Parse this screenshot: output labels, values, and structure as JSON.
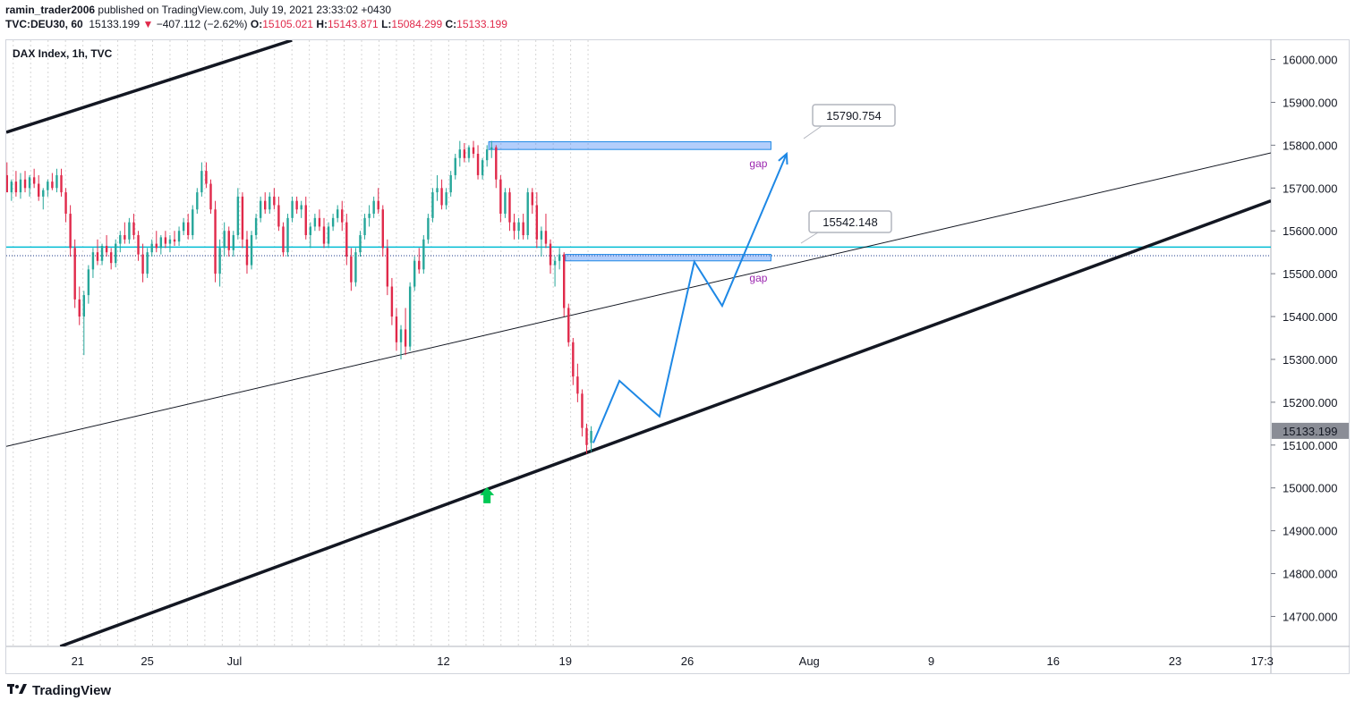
{
  "header": {
    "publisher": "ramin_trader2006",
    "published_text": " published on TradingView.com, July 19, 2021 23:33:02 +0430",
    "symbol": "TVC:DEU30, 60",
    "last": "15133.199",
    "change": "−407.112 (−2.62%)",
    "o_label": "O:",
    "o_value": "15105.021",
    "h_label": "H:",
    "h_value": "15143.871",
    "l_label": "L:",
    "l_value": "15084.299",
    "c_label": "C:",
    "c_value": "15133.199"
  },
  "footer": {
    "brand": "TradingView",
    "logo_icon": "tradingview-logo-icon"
  },
  "chart_data": {
    "type": "candlestick",
    "title": "DAX Index, 1h, TVC",
    "y_ticks": [
      14700,
      14800,
      14900,
      15000,
      15100,
      15200,
      15300,
      15400,
      15500,
      15600,
      15700,
      15800,
      15900,
      16000
    ],
    "y_tick_labels": [
      "14700.000",
      "14800.000",
      "14900.000",
      "15000.000",
      "15100.000",
      "15200.000",
      "15300.000",
      "15400.000",
      "15500.000",
      "15600.000",
      "15700.000",
      "15800.000",
      "15900.000",
      "16000.000"
    ],
    "ylim": [
      14630,
      16045
    ],
    "x_ticks": [
      {
        "day": 21,
        "label": "21"
      },
      {
        "day": 25,
        "label": "25"
      },
      {
        "day": 30,
        "label": "Jul"
      },
      {
        "day": 42,
        "label": "12"
      },
      {
        "day": 49,
        "label": "19"
      },
      {
        "day": 56,
        "label": "26"
      },
      {
        "day": 63,
        "label": "Aug"
      },
      {
        "day": 70,
        "label": "9"
      },
      {
        "day": 77,
        "label": "16"
      },
      {
        "day": 84,
        "label": "23"
      },
      {
        "day": 89,
        "label": "17:3"
      }
    ],
    "xlim": [
      16.9,
      89.5
    ],
    "last_price": {
      "value": 15133.199,
      "label": "15133.199"
    },
    "horizontal_line": {
      "value": 15562,
      "color": "#00bcd4"
    },
    "dotted_line": {
      "value": 15542.148
    },
    "callouts": [
      {
        "label": "15790.754",
        "value": 15790.754
      },
      {
        "label": "15542.148",
        "value": 15542.148
      }
    ],
    "gap_zones": [
      {
        "label": "gap",
        "day_start": 44.6,
        "day_end": 60.8,
        "low": 15790,
        "high": 15808
      },
      {
        "label": "gap",
        "day_start": 49.0,
        "day_end": 60.8,
        "low": 15530,
        "high": 15545
      }
    ],
    "trendlines": [
      {
        "name": "upper-channel",
        "points": [
          [
            16.9,
            15830
          ],
          [
            33.3,
            16045
          ]
        ],
        "width": 3.5,
        "color": "#131722"
      },
      {
        "name": "lower-channel",
        "points": [
          [
            20.0,
            14630
          ],
          [
            89.5,
            15670
          ]
        ],
        "width": 3.5,
        "color": "#131722"
      },
      {
        "name": "mid-trend",
        "points": [
          [
            16.9,
            15097
          ],
          [
            89.5,
            15782
          ]
        ],
        "width": 1,
        "color": "#131722"
      }
    ],
    "projection_path": {
      "color": "#1e88e5",
      "points": [
        [
          50.6,
          15105
        ],
        [
          52.1,
          15250
        ],
        [
          54.4,
          15167
        ],
        [
          56.4,
          15528
        ],
        [
          58.0,
          15425
        ],
        [
          61.7,
          15780
        ]
      ]
    },
    "arrow_marker": {
      "day": 44.5,
      "value": 14985,
      "color": "#00c853"
    },
    "candles": [
      {
        "d": 16.94,
        "o": 15730,
        "h": 15760,
        "l": 15700,
        "c": 15690
      },
      {
        "d": 17.2,
        "o": 15690,
        "h": 15720,
        "l": 15670,
        "c": 15715
      },
      {
        "d": 17.46,
        "o": 15715,
        "h": 15740,
        "l": 15680,
        "c": 15690
      },
      {
        "d": 17.72,
        "o": 15690,
        "h": 15735,
        "l": 15675,
        "c": 15720
      },
      {
        "d": 17.98,
        "o": 15720,
        "h": 15740,
        "l": 15690,
        "c": 15700
      },
      {
        "d": 18.24,
        "o": 15700,
        "h": 15730,
        "l": 15680,
        "c": 15725
      },
      {
        "d": 18.5,
        "o": 15725,
        "h": 15745,
        "l": 15700,
        "c": 15710
      },
      {
        "d": 18.76,
        "o": 15710,
        "h": 15730,
        "l": 15670,
        "c": 15680
      },
      {
        "d": 19.02,
        "o": 15680,
        "h": 15700,
        "l": 15650,
        "c": 15695
      },
      {
        "d": 19.28,
        "o": 15695,
        "h": 15720,
        "l": 15680,
        "c": 15715
      },
      {
        "d": 19.54,
        "o": 15715,
        "h": 15735,
        "l": 15695,
        "c": 15700
      },
      {
        "d": 19.8,
        "o": 15700,
        "h": 15745,
        "l": 15690,
        "c": 15730
      },
      {
        "d": 20.06,
        "o": 15730,
        "h": 15745,
        "l": 15680,
        "c": 15690
      },
      {
        "d": 20.32,
        "o": 15690,
        "h": 15700,
        "l": 15620,
        "c": 15640
      },
      {
        "d": 20.58,
        "o": 15640,
        "h": 15660,
        "l": 15540,
        "c": 15560
      },
      {
        "d": 20.84,
        "o": 15560,
        "h": 15580,
        "l": 15420,
        "c": 15440
      },
      {
        "d": 21.1,
        "o": 15440,
        "h": 15470,
        "l": 15380,
        "c": 15400
      },
      {
        "d": 21.36,
        "o": 15400,
        "h": 15460,
        "l": 15310,
        "c": 15450
      },
      {
        "d": 21.62,
        "o": 15450,
        "h": 15520,
        "l": 15430,
        "c": 15510
      },
      {
        "d": 21.88,
        "o": 15510,
        "h": 15560,
        "l": 15490,
        "c": 15550
      },
      {
        "d": 22.14,
        "o": 15550,
        "h": 15580,
        "l": 15520,
        "c": 15530
      },
      {
        "d": 22.4,
        "o": 15530,
        "h": 15570,
        "l": 15520,
        "c": 15565
      },
      {
        "d": 22.66,
        "o": 15565,
        "h": 15590,
        "l": 15540,
        "c": 15550
      },
      {
        "d": 22.92,
        "o": 15550,
        "h": 15560,
        "l": 15510,
        "c": 15525
      },
      {
        "d": 23.18,
        "o": 15525,
        "h": 15580,
        "l": 15515,
        "c": 15570
      },
      {
        "d": 23.44,
        "o": 15570,
        "h": 15600,
        "l": 15550,
        "c": 15590
      },
      {
        "d": 23.7,
        "o": 15590,
        "h": 15620,
        "l": 15570,
        "c": 15580
      },
      {
        "d": 23.96,
        "o": 15580,
        "h": 15630,
        "l": 15570,
        "c": 15620
      },
      {
        "d": 24.22,
        "o": 15620,
        "h": 15640,
        "l": 15580,
        "c": 15590
      },
      {
        "d": 24.48,
        "o": 15590,
        "h": 15600,
        "l": 15530,
        "c": 15545
      },
      {
        "d": 24.74,
        "o": 15545,
        "h": 15570,
        "l": 15480,
        "c": 15500
      },
      {
        "d": 25.0,
        "o": 15500,
        "h": 15560,
        "l": 15490,
        "c": 15550
      },
      {
        "d": 25.26,
        "o": 15550,
        "h": 15580,
        "l": 15540,
        "c": 15570
      },
      {
        "d": 25.52,
        "o": 15570,
        "h": 15600,
        "l": 15550,
        "c": 15560
      },
      {
        "d": 25.78,
        "o": 15560,
        "h": 15590,
        "l": 15545,
        "c": 15585
      },
      {
        "d": 26.04,
        "o": 15585,
        "h": 15600,
        "l": 15560,
        "c": 15570
      },
      {
        "d": 26.3,
        "o": 15570,
        "h": 15590,
        "l": 15550,
        "c": 15580
      },
      {
        "d": 26.56,
        "o": 15580,
        "h": 15600,
        "l": 15565,
        "c": 15575
      },
      {
        "d": 26.82,
        "o": 15575,
        "h": 15610,
        "l": 15565,
        "c": 15600
      },
      {
        "d": 27.08,
        "o": 15600,
        "h": 15630,
        "l": 15590,
        "c": 15620
      },
      {
        "d": 27.34,
        "o": 15620,
        "h": 15640,
        "l": 15580,
        "c": 15590
      },
      {
        "d": 27.6,
        "o": 15590,
        "h": 15660,
        "l": 15580,
        "c": 15650
      },
      {
        "d": 27.86,
        "o": 15650,
        "h": 15700,
        "l": 15640,
        "c": 15690
      },
      {
        "d": 28.12,
        "o": 15690,
        "h": 15760,
        "l": 15680,
        "c": 15740
      },
      {
        "d": 28.38,
        "o": 15740,
        "h": 15760,
        "l": 15700,
        "c": 15710
      },
      {
        "d": 28.64,
        "o": 15710,
        "h": 15720,
        "l": 15640,
        "c": 15650
      },
      {
        "d": 28.9,
        "o": 15650,
        "h": 15670,
        "l": 15480,
        "c": 15500
      },
      {
        "d": 29.16,
        "o": 15500,
        "h": 15580,
        "l": 15470,
        "c": 15560
      },
      {
        "d": 29.42,
        "o": 15560,
        "h": 15620,
        "l": 15540,
        "c": 15600
      },
      {
        "d": 29.68,
        "o": 15600,
        "h": 15610,
        "l": 15540,
        "c": 15555
      },
      {
        "d": 29.94,
        "o": 15555,
        "h": 15600,
        "l": 15540,
        "c": 15590
      },
      {
        "d": 30.2,
        "o": 15590,
        "h": 15700,
        "l": 15580,
        "c": 15680
      },
      {
        "d": 30.46,
        "o": 15680,
        "h": 15690,
        "l": 15560,
        "c": 15580
      },
      {
        "d": 30.72,
        "o": 15580,
        "h": 15600,
        "l": 15500,
        "c": 15520
      },
      {
        "d": 30.98,
        "o": 15520,
        "h": 15600,
        "l": 15510,
        "c": 15590
      },
      {
        "d": 31.24,
        "o": 15590,
        "h": 15640,
        "l": 15580,
        "c": 15630
      },
      {
        "d": 31.5,
        "o": 15630,
        "h": 15680,
        "l": 15620,
        "c": 15670
      },
      {
        "d": 31.76,
        "o": 15670,
        "h": 15690,
        "l": 15640,
        "c": 15650
      },
      {
        "d": 32.02,
        "o": 15650,
        "h": 15690,
        "l": 15640,
        "c": 15680
      },
      {
        "d": 32.28,
        "o": 15680,
        "h": 15700,
        "l": 15650,
        "c": 15660
      },
      {
        "d": 32.54,
        "o": 15660,
        "h": 15680,
        "l": 15600,
        "c": 15610
      },
      {
        "d": 32.8,
        "o": 15610,
        "h": 15620,
        "l": 15540,
        "c": 15550
      },
      {
        "d": 33.06,
        "o": 15550,
        "h": 15640,
        "l": 15540,
        "c": 15630
      },
      {
        "d": 33.32,
        "o": 15630,
        "h": 15680,
        "l": 15620,
        "c": 15670
      },
      {
        "d": 33.58,
        "o": 15670,
        "h": 15680,
        "l": 15640,
        "c": 15650
      },
      {
        "d": 33.84,
        "o": 15650,
        "h": 15670,
        "l": 15630,
        "c": 15660
      },
      {
        "d": 34.1,
        "o": 15660,
        "h": 15680,
        "l": 15580,
        "c": 15590
      },
      {
        "d": 34.36,
        "o": 15590,
        "h": 15620,
        "l": 15560,
        "c": 15610
      },
      {
        "d": 34.62,
        "o": 15610,
        "h": 15640,
        "l": 15600,
        "c": 15630
      },
      {
        "d": 34.88,
        "o": 15630,
        "h": 15650,
        "l": 15600,
        "c": 15610
      },
      {
        "d": 35.14,
        "o": 15610,
        "h": 15630,
        "l": 15560,
        "c": 15570
      },
      {
        "d": 35.4,
        "o": 15570,
        "h": 15620,
        "l": 15560,
        "c": 15610
      },
      {
        "d": 35.66,
        "o": 15610,
        "h": 15640,
        "l": 15600,
        "c": 15630
      },
      {
        "d": 35.92,
        "o": 15630,
        "h": 15660,
        "l": 15620,
        "c": 15650
      },
      {
        "d": 36.18,
        "o": 15650,
        "h": 15670,
        "l": 15600,
        "c": 15620
      },
      {
        "d": 36.44,
        "o": 15620,
        "h": 15640,
        "l": 15520,
        "c": 15540
      },
      {
        "d": 36.7,
        "o": 15540,
        "h": 15560,
        "l": 15460,
        "c": 15480
      },
      {
        "d": 36.96,
        "o": 15480,
        "h": 15560,
        "l": 15470,
        "c": 15550
      },
      {
        "d": 37.22,
        "o": 15550,
        "h": 15600,
        "l": 15540,
        "c": 15590
      },
      {
        "d": 37.48,
        "o": 15590,
        "h": 15640,
        "l": 15580,
        "c": 15630
      },
      {
        "d": 37.74,
        "o": 15630,
        "h": 15660,
        "l": 15610,
        "c": 15640
      },
      {
        "d": 38.0,
        "o": 15640,
        "h": 15680,
        "l": 15630,
        "c": 15670
      },
      {
        "d": 38.26,
        "o": 15670,
        "h": 15700,
        "l": 15640,
        "c": 15650
      },
      {
        "d": 38.52,
        "o": 15650,
        "h": 15660,
        "l": 15540,
        "c": 15560
      },
      {
        "d": 38.78,
        "o": 15560,
        "h": 15580,
        "l": 15450,
        "c": 15470
      },
      {
        "d": 39.04,
        "o": 15470,
        "h": 15490,
        "l": 15380,
        "c": 15400
      },
      {
        "d": 39.3,
        "o": 15400,
        "h": 15420,
        "l": 15320,
        "c": 15340
      },
      {
        "d": 39.56,
        "o": 15340,
        "h": 15380,
        "l": 15300,
        "c": 15370
      },
      {
        "d": 39.82,
        "o": 15370,
        "h": 15420,
        "l": 15310,
        "c": 15330
      },
      {
        "d": 40.08,
        "o": 15330,
        "h": 15480,
        "l": 15320,
        "c": 15470
      },
      {
        "d": 40.34,
        "o": 15470,
        "h": 15540,
        "l": 15460,
        "c": 15530
      },
      {
        "d": 40.6,
        "o": 15530,
        "h": 15560,
        "l": 15500,
        "c": 15510
      },
      {
        "d": 40.86,
        "o": 15510,
        "h": 15590,
        "l": 15500,
        "c": 15580
      },
      {
        "d": 41.12,
        "o": 15580,
        "h": 15640,
        "l": 15570,
        "c": 15630
      },
      {
        "d": 41.38,
        "o": 15630,
        "h": 15700,
        "l": 15620,
        "c": 15690
      },
      {
        "d": 41.64,
        "o": 15690,
        "h": 15730,
        "l": 15670,
        "c": 15700
      },
      {
        "d": 41.9,
        "o": 15700,
        "h": 15720,
        "l": 15650,
        "c": 15660
      },
      {
        "d": 42.16,
        "o": 15660,
        "h": 15700,
        "l": 15650,
        "c": 15690
      },
      {
        "d": 42.42,
        "o": 15690,
        "h": 15740,
        "l": 15680,
        "c": 15730
      },
      {
        "d": 42.68,
        "o": 15730,
        "h": 15780,
        "l": 15720,
        "c": 15770
      },
      {
        "d": 42.94,
        "o": 15770,
        "h": 15810,
        "l": 15750,
        "c": 15790
      },
      {
        "d": 43.2,
        "o": 15790,
        "h": 15805,
        "l": 15760,
        "c": 15770
      },
      {
        "d": 43.46,
        "o": 15770,
        "h": 15800,
        "l": 15760,
        "c": 15795
      },
      {
        "d": 43.72,
        "o": 15795,
        "h": 15810,
        "l": 15770,
        "c": 15780
      },
      {
        "d": 43.98,
        "o": 15780,
        "h": 15800,
        "l": 15720,
        "c": 15730
      },
      {
        "d": 44.24,
        "o": 15730,
        "h": 15770,
        "l": 15720,
        "c": 15765
      },
      {
        "d": 44.5,
        "o": 15765,
        "h": 15800,
        "l": 15750,
        "c": 15790
      },
      {
        "d": 44.76,
        "o": 15790,
        "h": 15810,
        "l": 15770,
        "c": 15795
      },
      {
        "d": 45.02,
        "o": 15795,
        "h": 15800,
        "l": 15700,
        "c": 15720
      },
      {
        "d": 45.28,
        "o": 15720,
        "h": 15730,
        "l": 15620,
        "c": 15640
      },
      {
        "d": 45.54,
        "o": 15640,
        "h": 15700,
        "l": 15630,
        "c": 15690
      },
      {
        "d": 45.8,
        "o": 15690,
        "h": 15700,
        "l": 15600,
        "c": 15620
      },
      {
        "d": 46.06,
        "o": 15620,
        "h": 15640,
        "l": 15580,
        "c": 15600
      },
      {
        "d": 46.32,
        "o": 15600,
        "h": 15630,
        "l": 15580,
        "c": 15620
      },
      {
        "d": 46.58,
        "o": 15620,
        "h": 15640,
        "l": 15580,
        "c": 15590
      },
      {
        "d": 46.84,
        "o": 15590,
        "h": 15700,
        "l": 15580,
        "c": 15690
      },
      {
        "d": 47.1,
        "o": 15690,
        "h": 15700,
        "l": 15640,
        "c": 15660
      },
      {
        "d": 47.36,
        "o": 15660,
        "h": 15690,
        "l": 15560,
        "c": 15580
      },
      {
        "d": 47.62,
        "o": 15580,
        "h": 15610,
        "l": 15540,
        "c": 15600
      },
      {
        "d": 47.88,
        "o": 15600,
        "h": 15640,
        "l": 15560,
        "c": 15570
      },
      {
        "d": 48.14,
        "o": 15570,
        "h": 15580,
        "l": 15500,
        "c": 15520
      },
      {
        "d": 48.4,
        "o": 15520,
        "h": 15540,
        "l": 15470,
        "c": 15530
      },
      {
        "d": 48.66,
        "o": 15530,
        "h": 15560,
        "l": 15510,
        "c": 15545
      },
      {
        "d": 48.92,
        "o": 15545,
        "h": 15550,
        "l": 15400,
        "c": 15420
      },
      {
        "d": 49.18,
        "o": 15420,
        "h": 15430,
        "l": 15330,
        "c": 15340
      },
      {
        "d": 49.44,
        "o": 15340,
        "h": 15350,
        "l": 15240,
        "c": 15260
      },
      {
        "d": 49.7,
        "o": 15260,
        "h": 15290,
        "l": 15200,
        "c": 15220
      },
      {
        "d": 49.96,
        "o": 15220,
        "h": 15230,
        "l": 15120,
        "c": 15140
      },
      {
        "d": 50.22,
        "o": 15140,
        "h": 15150,
        "l": 15080,
        "c": 15100
      },
      {
        "d": 50.48,
        "o": 15105,
        "h": 15144,
        "l": 15084,
        "c": 15133
      }
    ]
  }
}
